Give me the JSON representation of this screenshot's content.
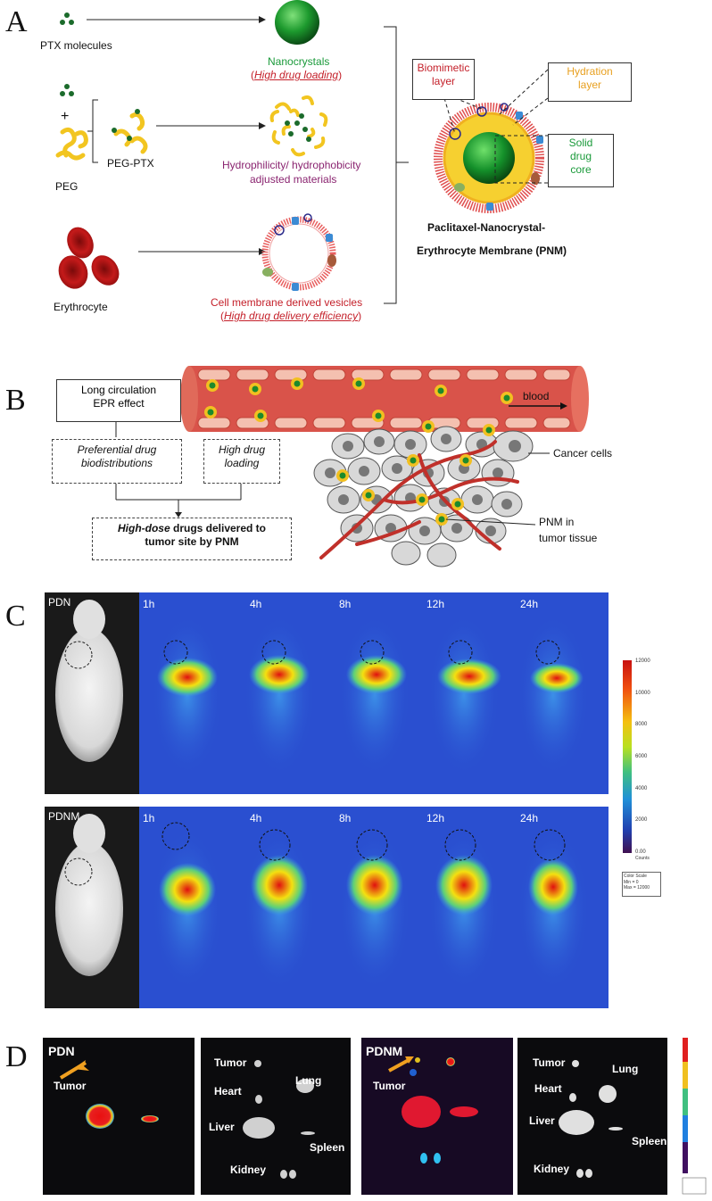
{
  "panel_labels": {
    "a": "A",
    "b": "B",
    "c": "C",
    "d": "D"
  },
  "panelA": {
    "ptx_molecules": "PTX molecules",
    "nanocrystals": "Nanocrystals",
    "high_drug_loading": "High drug loading",
    "plus": "+",
    "peg_ptx": "PEG-PTX",
    "peg": "PEG",
    "hydro_line1": "Hydrophilicity/ hydrophobicity",
    "hydro_line2": "adjusted materials",
    "erythrocyte": "Erythrocyte",
    "vesicles": "Cell membrane derived vesicles",
    "high_delivery": "High drug delivery efficiency",
    "biomimetic_line1": "Biomimetic",
    "biomimetic_line2": "layer",
    "hydration_line1": "Hydration",
    "hydration_line2": "layer",
    "solid_line1": "Solid",
    "solid_line2": "drug",
    "solid_line3": "core",
    "pnm_line1": "Paclitaxel-Nanocrystal-",
    "pnm_line2": "Erythrocyte Membrane (PNM)"
  },
  "panelB": {
    "long_line1": "Long circulation",
    "long_line2": "EPR effect",
    "pref_line1": "Preferential drug",
    "pref_line2": "biodistributions",
    "high_line1": "High drug",
    "high_line2": "loading",
    "highdose_bold": "High-dose",
    "highdose_rest": " drugs delivered to",
    "highdose_line2": "tumor site by PNM",
    "blood": "blood",
    "cancer_cells": "Cancer cells",
    "pnm_tissue_line1": "PNM  in",
    "pnm_tissue_line2": "tumor tissue"
  },
  "panelC": {
    "row1_label": "PDN",
    "row2_label": "PDNM",
    "timepoints": [
      "1h",
      "4h",
      "8h",
      "12h",
      "24h"
    ],
    "scale_ticks": [
      "12000",
      "10000",
      "8000",
      "6000",
      "4000",
      "2000",
      "0.00"
    ],
    "scale_unit": "Counts",
    "scale_title": "Color Scale",
    "scale_min": "Min = 0",
    "scale_max": "Max = 12000"
  },
  "panelD": {
    "pdn": "PDN",
    "pdnm": "PDNM",
    "tumor": "Tumor",
    "heart": "Heart",
    "lung": "Lung",
    "liver": "Liver",
    "spleen": "Spleen",
    "kidney": "Kidney"
  },
  "colors": {
    "red": "#c4202a",
    "green": "#1a9a3a",
    "purple": "#8a2470",
    "orange": "#e8a020",
    "vessel": "#d9534a"
  }
}
